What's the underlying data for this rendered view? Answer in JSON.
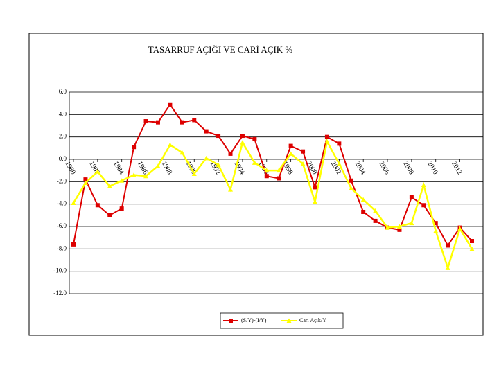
{
  "chart_data": {
    "type": "line",
    "title": "TASARRUF AÇIĞI VE CARİ AÇIK %",
    "x": [
      1980,
      1981,
      1982,
      1983,
      1984,
      1985,
      1986,
      1987,
      1988,
      1989,
      1990,
      1991,
      1992,
      1993,
      1994,
      1995,
      1996,
      1997,
      1998,
      1999,
      2000,
      2001,
      2002,
      2003,
      2004,
      2005,
      2006,
      2007,
      2008,
      2009,
      2010,
      2011,
      2012,
      2013
    ],
    "series": [
      {
        "name": "(S/Y)-(I/Y)",
        "color": "#dd0000",
        "marker": "square",
        "values": [
          -7.6,
          -1.8,
          -4.1,
          -5.0,
          -4.4,
          1.1,
          3.4,
          3.3,
          4.9,
          3.3,
          3.5,
          2.5,
          2.1,
          0.5,
          2.1,
          1.8,
          -1.5,
          -1.7,
          1.2,
          0.7,
          -2.5,
          2.0,
          1.4,
          -1.9,
          -4.7,
          -5.5,
          -6.1,
          -6.3,
          -3.4,
          -4.1,
          -5.7,
          -7.7,
          -6.1,
          -7.3
        ]
      },
      {
        "name": "Cari Açık/Y",
        "color": "#ffff00",
        "marker": "triangle",
        "values": [
          -3.9,
          -2.1,
          -1.1,
          -2.4,
          -1.9,
          -1.4,
          -1.5,
          -0.6,
          1.3,
          0.6,
          -1.3,
          0.1,
          -0.5,
          -2.7,
          1.5,
          -0.3,
          -1.0,
          -1.0,
          0.5,
          -0.4,
          -3.8,
          1.6,
          -0.4,
          -2.6,
          -3.6,
          -4.6,
          -6.1,
          -6.0,
          -5.7,
          -2.3,
          -6.4,
          -9.7,
          -6.2,
          -8.0
        ]
      }
    ],
    "xlim": [
      1980,
      2013
    ],
    "xticks": [
      1980,
      1982,
      1984,
      1986,
      1988,
      1990,
      1992,
      1994,
      1996,
      1998,
      2000,
      2002,
      2004,
      2006,
      2008,
      2010,
      2012
    ],
    "ylim": [
      -12,
      6
    ],
    "yticks": [
      {
        "value": 6,
        "label": "6.0"
      },
      {
        "value": 4,
        "label": "4.0"
      },
      {
        "value": 2,
        "label": "2.0"
      },
      {
        "value": 0,
        "label": "0.0"
      },
      {
        "value": -2,
        "label": "-2.0"
      },
      {
        "value": -4,
        "label": "-4.0"
      },
      {
        "value": -6,
        "label": "-6.0"
      },
      {
        "value": -8,
        "label": "-8.0"
      },
      {
        "value": -10,
        "label": "-10.0"
      },
      {
        "value": -12,
        "label": "-12.0"
      }
    ],
    "grid": true,
    "legend": "bottom"
  }
}
